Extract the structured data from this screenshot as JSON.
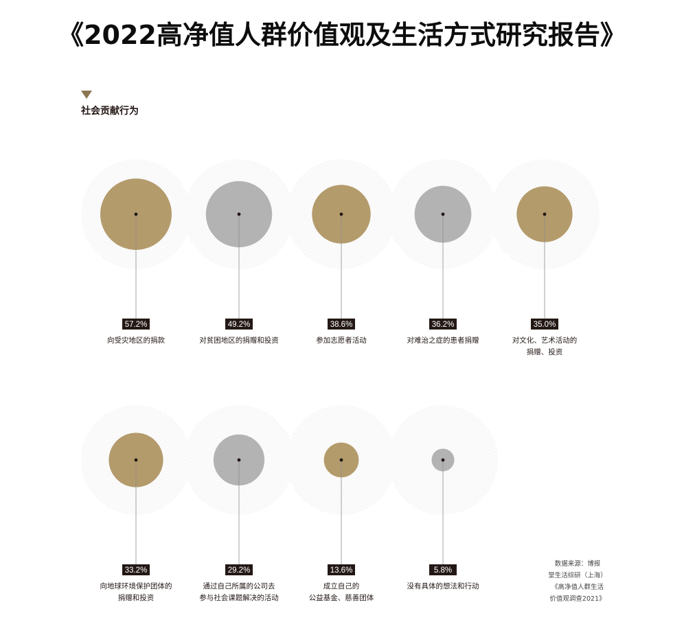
{
  "title": "《2022高净值人群价值观及生活方式研究报告》",
  "section": {
    "title": "社会贡献行为"
  },
  "source": {
    "lines": [
      "数据来源：博报",
      "堂生活综研（上海）",
      "《高净值人群生活",
      "价值观调查2021》"
    ]
  },
  "colors": {
    "gold": "#b49b6c",
    "gray": "#b3b3b4",
    "label_bg": "#231815",
    "marker": "#8a7650"
  },
  "chart_data": {
    "type": "bubble",
    "unit": "%",
    "items": [
      {
        "label_lines": [
          "向受灾地区的捐款"
        ],
        "value": 57.2,
        "value_label": "57.2%",
        "color": "gold"
      },
      {
        "label_lines": [
          "对贫困地区的捐赠和投资"
        ],
        "value": 49.2,
        "value_label": "49.2%",
        "color": "gray"
      },
      {
        "label_lines": [
          "参加志愿者活动"
        ],
        "value": 38.6,
        "value_label": "38.6%",
        "color": "gold"
      },
      {
        "label_lines": [
          "对难治之症的患者捐赠"
        ],
        "value": 36.2,
        "value_label": "36.2%",
        "color": "gray"
      },
      {
        "label_lines": [
          "对文化、艺术活动的",
          "捐赠、投资"
        ],
        "value": 35.0,
        "value_label": "35.0%",
        "color": "gold"
      },
      {
        "label_lines": [
          "向地球环境保护团体的",
          "捐赠和投资"
        ],
        "value": 33.2,
        "value_label": "33.2%",
        "color": "gold"
      },
      {
        "label_lines": [
          "通过自己所属的公司去",
          "参与社会课题解决的活动"
        ],
        "value": 29.2,
        "value_label": "29.2%",
        "color": "gray"
      },
      {
        "label_lines": [
          "成立自己的",
          "公益基金、慈善团体"
        ],
        "value": 13.6,
        "value_label": "13.6%",
        "color": "gold"
      },
      {
        "label_lines": [
          "没有具体的想法和行动"
        ],
        "value": 5.8,
        "value_label": "5.8%",
        "color": "gray"
      }
    ]
  }
}
